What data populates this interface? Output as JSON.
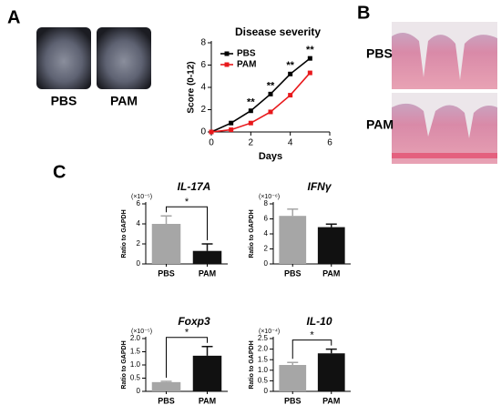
{
  "panels": {
    "a": {
      "label": "A",
      "photo_labels": [
        "PBS",
        "PAM"
      ]
    },
    "b": {
      "label": "B",
      "image_labels": [
        "PBS",
        "PAM"
      ]
    },
    "c": {
      "label": "C"
    }
  },
  "chart_data": [
    {
      "type": "line",
      "title": "Disease severity",
      "x_label": "Days",
      "y_label": "Score (0-12)",
      "x": [
        0,
        1,
        2,
        3,
        4,
        5
      ],
      "xlim": [
        0,
        6
      ],
      "xticks": [
        0,
        2,
        4,
        6
      ],
      "ylim": [
        0,
        8
      ],
      "yticks": [
        0,
        2,
        4,
        6,
        8
      ],
      "series": [
        {
          "name": "PBS",
          "color": "#000000",
          "values": [
            0,
            0.8,
            1.9,
            3.4,
            5.2,
            6.6
          ]
        },
        {
          "name": "PAM",
          "color": "#e8191c",
          "values": [
            0,
            0.2,
            0.8,
            1.8,
            3.3,
            5.3
          ]
        }
      ],
      "point_labels": [
        null,
        null,
        "**",
        "**",
        "**",
        "**"
      ],
      "legend": "upper left"
    },
    {
      "type": "bar",
      "title": "IL-17A",
      "unit_label": "(×10⁻⁵)",
      "y_label": "Ratio to GAPDH",
      "categories": [
        "PBS",
        "PAM"
      ],
      "values": [
        4.0,
        1.3
      ],
      "errors": [
        0.8,
        0.7
      ],
      "colors": [
        "#a6a6a6",
        "#111111"
      ],
      "ylim": [
        0,
        6
      ],
      "yticks": [
        0,
        2,
        4,
        6
      ],
      "significance": "*"
    },
    {
      "type": "bar",
      "title": "IFNγ",
      "unit_label": "(×10⁻⁶)",
      "y_label": "Ratio to GAPDH",
      "categories": [
        "PBS",
        "PAM"
      ],
      "values": [
        6.4,
        4.9
      ],
      "errors": [
        0.9,
        0.4
      ],
      "colors": [
        "#a6a6a6",
        "#111111"
      ],
      "ylim": [
        0,
        8
      ],
      "yticks": [
        0,
        2,
        4,
        6,
        8
      ]
    },
    {
      "type": "bar",
      "title": "Foxp3",
      "unit_label": "(×10⁻⁵)",
      "y_label": "Ratio to GAPDH",
      "categories": [
        "PBS",
        "PAM"
      ],
      "values": [
        0.35,
        1.35
      ],
      "errors": [
        0.03,
        0.35
      ],
      "colors": [
        "#a6a6a6",
        "#111111"
      ],
      "ylim": [
        0,
        2
      ],
      "yticks": [
        0,
        0.5,
        {
          "value": 1,
          "label": "1.0"
        },
        1.5,
        {
          "value": 2,
          "label": "2.0"
        }
      ],
      "significance": "*"
    },
    {
      "type": "bar",
      "title": "IL-10",
      "unit_label": "(×10⁻⁴)",
      "y_label": "Ratio to GAPDH",
      "categories": [
        "PBS",
        "PAM"
      ],
      "values": [
        1.25,
        1.8
      ],
      "errors": [
        0.12,
        0.2
      ],
      "colors": [
        "#a6a6a6",
        "#111111"
      ],
      "ylim": [
        0,
        2.5
      ],
      "yticks": [
        0,
        0.5,
        {
          "value": 1,
          "label": "1.0"
        },
        1.5,
        {
          "value": 2,
          "label": "2.0"
        },
        2.5
      ],
      "significance": "*"
    }
  ]
}
